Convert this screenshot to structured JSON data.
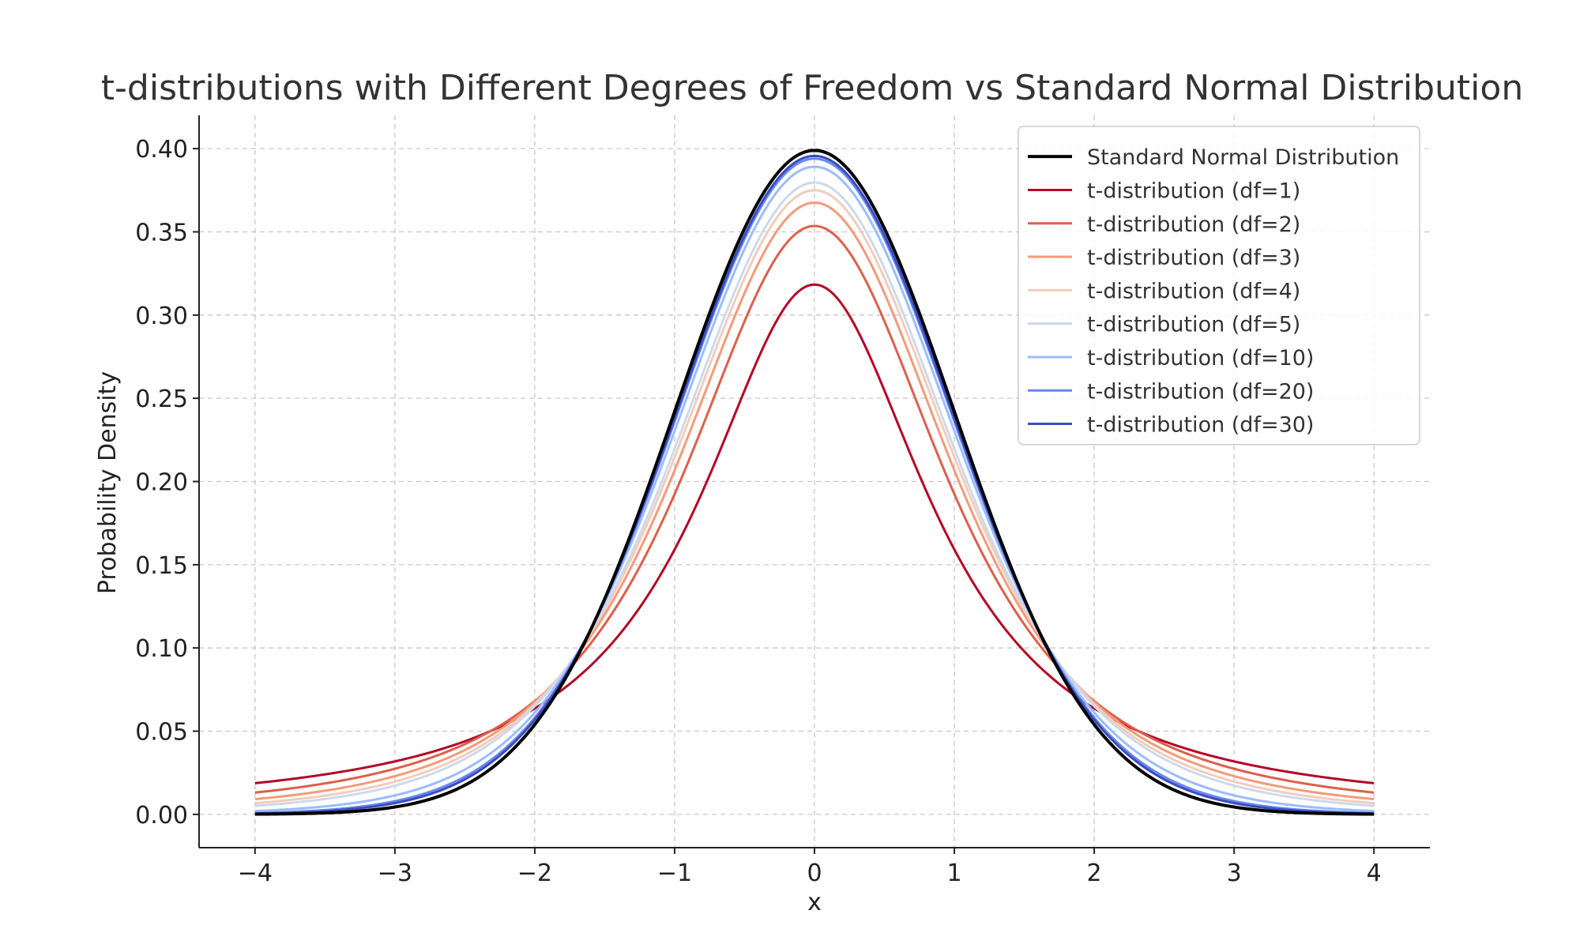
{
  "chart_data": {
    "type": "line",
    "title": "t-distributions with Different Degrees of Freedom vs Standard Normal Distribution",
    "xlabel": "x",
    "ylabel": "Probability Density",
    "xlim": [
      -4.4,
      4.4
    ],
    "ylim": [
      -0.02,
      0.42
    ],
    "x_range": [
      -4,
      4
    ],
    "grid": true,
    "legend_position": "top-right",
    "x_ticks": [
      -4,
      -3,
      -2,
      -1,
      0,
      1,
      2,
      3,
      4
    ],
    "x_tick_labels": [
      "−4",
      "−3",
      "−2",
      "−1",
      "0",
      "1",
      "2",
      "3",
      "4"
    ],
    "y_ticks": [
      0,
      0.05,
      0.1,
      0.15,
      0.2,
      0.25,
      0.3,
      0.35,
      0.4
    ],
    "y_tick_labels": [
      "0.00",
      "0.05",
      "0.10",
      "0.15",
      "0.20",
      "0.25",
      "0.30",
      "0.35",
      "0.40"
    ],
    "series": [
      {
        "name": "Standard Normal Distribution",
        "kind": "normal",
        "df": null,
        "color": "#000000",
        "peak": 0.399,
        "density_at_4": 0.0001
      },
      {
        "name": "t-distribution (df=1)",
        "kind": "t",
        "df": 1,
        "color": "#b40426",
        "peak": 0.318,
        "density_at_4": 0.019
      },
      {
        "name": "t-distribution (df=2)",
        "kind": "t",
        "df": 2,
        "color": "#dd5f4b",
        "peak": 0.354,
        "density_at_4": 0.013
      },
      {
        "name": "t-distribution (df=3)",
        "kind": "t",
        "df": 3,
        "color": "#f49a7b",
        "peak": 0.368,
        "density_at_4": 0.009
      },
      {
        "name": "t-distribution (df=4)",
        "kind": "t",
        "df": 4,
        "color": "#f1cdba",
        "peak": 0.375,
        "density_at_4": 0.007
      },
      {
        "name": "t-distribution (df=5)",
        "kind": "t",
        "df": 5,
        "color": "#cdd9ec",
        "peak": 0.38,
        "density_at_4": 0.005
      },
      {
        "name": "t-distribution (df=10)",
        "kind": "t",
        "df": 10,
        "color": "#9bbcff",
        "peak": 0.389,
        "density_at_4": 0.002
      },
      {
        "name": "t-distribution (df=20)",
        "kind": "t",
        "df": 20,
        "color": "#6788ee",
        "peak": 0.394,
        "density_at_4": 0.0007
      },
      {
        "name": "t-distribution (df=30)",
        "kind": "t",
        "df": 30,
        "color": "#3b4cc0",
        "peak": 0.396,
        "density_at_4": 0.0004
      }
    ]
  }
}
